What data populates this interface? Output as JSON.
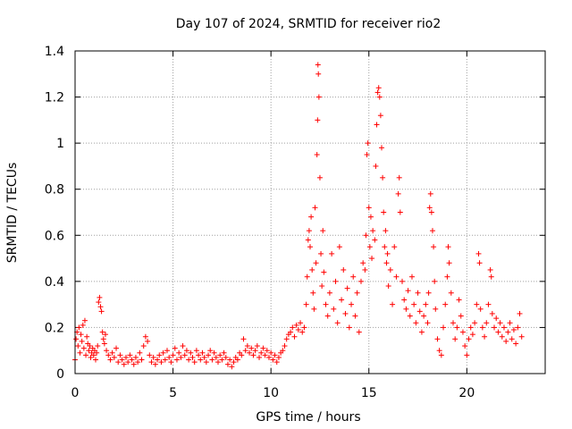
{
  "chart_data": {
    "type": "scatter",
    "title": "Day 107 of 2024, SRMTID for receiver rio2",
    "xlabel": "GPS time / hours",
    "ylabel": "SRMTID / TECUs",
    "xlim": [
      0,
      24
    ],
    "ylim": [
      0,
      1.4
    ],
    "xticks": [
      0,
      5,
      10,
      15,
      20
    ],
    "xtick_labels": [
      "0",
      "5",
      "10",
      "15",
      "20"
    ],
    "yticks": [
      0,
      0.2,
      0.4,
      0.6,
      0.8,
      1.0,
      1.2,
      1.4
    ],
    "ytick_labels": [
      "0",
      "0.2",
      "0.4",
      "0.6",
      "0.8",
      "1",
      "1.2",
      "1.4"
    ],
    "grid": true,
    "marker": "+",
    "color": "#ff0000",
    "series": [
      {
        "name": "SRMTID",
        "points": [
          [
            0.0,
            0.06
          ],
          [
            0.05,
            0.15
          ],
          [
            0.1,
            0.18
          ],
          [
            0.15,
            0.12
          ],
          [
            0.2,
            0.2
          ],
          [
            0.25,
            0.09
          ],
          [
            0.3,
            0.17
          ],
          [
            0.35,
            0.14
          ],
          [
            0.4,
            0.21
          ],
          [
            0.45,
            0.11
          ],
          [
            0.5,
            0.23
          ],
          [
            0.55,
            0.08
          ],
          [
            0.6,
            0.16
          ],
          [
            0.65,
            0.13
          ],
          [
            0.7,
            0.1
          ],
          [
            0.75,
            0.12
          ],
          [
            0.8,
            0.07
          ],
          [
            0.85,
            0.09
          ],
          [
            0.9,
            0.11
          ],
          [
            0.95,
            0.08
          ],
          [
            1.0,
            0.1
          ],
          [
            1.05,
            0.06
          ],
          [
            1.1,
            0.09
          ],
          [
            1.15,
            0.12
          ],
          [
            1.2,
            0.31
          ],
          [
            1.25,
            0.33
          ],
          [
            1.3,
            0.29
          ],
          [
            1.35,
            0.27
          ],
          [
            1.4,
            0.18
          ],
          [
            1.45,
            0.15
          ],
          [
            1.5,
            0.13
          ],
          [
            1.55,
            0.17
          ],
          [
            1.6,
            0.1
          ],
          [
            1.7,
            0.08
          ],
          [
            1.8,
            0.06
          ],
          [
            1.9,
            0.09
          ],
          [
            2.0,
            0.07
          ],
          [
            2.1,
            0.11
          ],
          [
            2.2,
            0.05
          ],
          [
            2.3,
            0.08
          ],
          [
            2.4,
            0.06
          ],
          [
            2.5,
            0.04
          ],
          [
            2.6,
            0.07
          ],
          [
            2.7,
            0.05
          ],
          [
            2.8,
            0.08
          ],
          [
            2.9,
            0.06
          ],
          [
            3.0,
            0.04
          ],
          [
            3.1,
            0.07
          ],
          [
            3.2,
            0.05
          ],
          [
            3.3,
            0.09
          ],
          [
            3.4,
            0.06
          ],
          [
            3.5,
            0.12
          ],
          [
            3.6,
            0.16
          ],
          [
            3.7,
            0.14
          ],
          [
            3.8,
            0.08
          ],
          [
            3.9,
            0.05
          ],
          [
            4.0,
            0.07
          ],
          [
            4.1,
            0.04
          ],
          [
            4.2,
            0.06
          ],
          [
            4.3,
            0.08
          ],
          [
            4.4,
            0.05
          ],
          [
            4.5,
            0.09
          ],
          [
            4.6,
            0.06
          ],
          [
            4.7,
            0.1
          ],
          [
            4.8,
            0.07
          ],
          [
            4.9,
            0.05
          ],
          [
            5.0,
            0.08
          ],
          [
            5.1,
            0.11
          ],
          [
            5.2,
            0.06
          ],
          [
            5.3,
            0.09
          ],
          [
            5.4,
            0.07
          ],
          [
            5.5,
            0.12
          ],
          [
            5.6,
            0.08
          ],
          [
            5.7,
            0.1
          ],
          [
            5.8,
            0.06
          ],
          [
            5.9,
            0.09
          ],
          [
            6.0,
            0.07
          ],
          [
            6.1,
            0.05
          ],
          [
            6.2,
            0.1
          ],
          [
            6.3,
            0.08
          ],
          [
            6.4,
            0.06
          ],
          [
            6.5,
            0.09
          ],
          [
            6.6,
            0.07
          ],
          [
            6.7,
            0.05
          ],
          [
            6.8,
            0.08
          ],
          [
            6.9,
            0.1
          ],
          [
            7.0,
            0.06
          ],
          [
            7.1,
            0.09
          ],
          [
            7.2,
            0.07
          ],
          [
            7.3,
            0.05
          ],
          [
            7.4,
            0.08
          ],
          [
            7.5,
            0.06
          ],
          [
            7.6,
            0.09
          ],
          [
            7.7,
            0.07
          ],
          [
            7.8,
            0.04
          ],
          [
            7.9,
            0.06
          ],
          [
            8.0,
            0.03
          ],
          [
            8.1,
            0.05
          ],
          [
            8.2,
            0.07
          ],
          [
            8.3,
            0.06
          ],
          [
            8.4,
            0.09
          ],
          [
            8.5,
            0.08
          ],
          [
            8.6,
            0.15
          ],
          [
            8.7,
            0.1
          ],
          [
            8.8,
            0.12
          ],
          [
            8.9,
            0.09
          ],
          [
            9.0,
            0.11
          ],
          [
            9.1,
            0.08
          ],
          [
            9.2,
            0.1
          ],
          [
            9.3,
            0.12
          ],
          [
            9.4,
            0.07
          ],
          [
            9.5,
            0.09
          ],
          [
            9.6,
            0.11
          ],
          [
            9.7,
            0.08
          ],
          [
            9.8,
            0.1
          ],
          [
            9.9,
            0.07
          ],
          [
            10.0,
            0.09
          ],
          [
            10.1,
            0.06
          ],
          [
            10.2,
            0.08
          ],
          [
            10.3,
            0.05
          ],
          [
            10.4,
            0.07
          ],
          [
            10.5,
            0.09
          ],
          [
            10.6,
            0.1
          ],
          [
            10.7,
            0.12
          ],
          [
            10.8,
            0.15
          ],
          [
            10.9,
            0.17
          ],
          [
            11.0,
            0.18
          ],
          [
            11.1,
            0.2
          ],
          [
            11.2,
            0.16
          ],
          [
            11.3,
            0.21
          ],
          [
            11.4,
            0.19
          ],
          [
            11.5,
            0.22
          ],
          [
            11.6,
            0.18
          ],
          [
            11.7,
            0.2
          ],
          [
            11.8,
            0.3
          ],
          [
            11.85,
            0.42
          ],
          [
            11.9,
            0.58
          ],
          [
            11.95,
            0.62
          ],
          [
            12.0,
            0.55
          ],
          [
            12.05,
            0.68
          ],
          [
            12.1,
            0.45
          ],
          [
            12.15,
            0.35
          ],
          [
            12.2,
            0.28
          ],
          [
            12.25,
            0.72
          ],
          [
            12.3,
            0.48
          ],
          [
            12.35,
            0.95
          ],
          [
            12.38,
            1.1
          ],
          [
            12.4,
            1.34
          ],
          [
            12.42,
            1.3
          ],
          [
            12.45,
            1.2
          ],
          [
            12.5,
            0.85
          ],
          [
            12.55,
            0.52
          ],
          [
            12.6,
            0.38
          ],
          [
            12.65,
            0.62
          ],
          [
            12.7,
            0.44
          ],
          [
            12.8,
            0.3
          ],
          [
            12.9,
            0.25
          ],
          [
            13.0,
            0.35
          ],
          [
            13.1,
            0.52
          ],
          [
            13.2,
            0.28
          ],
          [
            13.3,
            0.4
          ],
          [
            13.4,
            0.22
          ],
          [
            13.5,
            0.55
          ],
          [
            13.6,
            0.32
          ],
          [
            13.7,
            0.45
          ],
          [
            13.8,
            0.26
          ],
          [
            13.9,
            0.37
          ],
          [
            14.0,
            0.2
          ],
          [
            14.1,
            0.3
          ],
          [
            14.2,
            0.42
          ],
          [
            14.3,
            0.25
          ],
          [
            14.4,
            0.35
          ],
          [
            14.5,
            0.18
          ],
          [
            14.6,
            0.4
          ],
          [
            14.7,
            0.48
          ],
          [
            14.8,
            0.45
          ],
          [
            14.85,
            0.6
          ],
          [
            14.9,
            0.95
          ],
          [
            14.95,
            1.0
          ],
          [
            15.0,
            0.72
          ],
          [
            15.05,
            0.55
          ],
          [
            15.1,
            0.68
          ],
          [
            15.15,
            0.5
          ],
          [
            15.2,
            0.62
          ],
          [
            15.3,
            0.58
          ],
          [
            15.35,
            0.9
          ],
          [
            15.4,
            1.08
          ],
          [
            15.45,
            1.22
          ],
          [
            15.5,
            1.24
          ],
          [
            15.55,
            1.2
          ],
          [
            15.6,
            1.12
          ],
          [
            15.65,
            0.98
          ],
          [
            15.7,
            0.85
          ],
          [
            15.75,
            0.7
          ],
          [
            15.8,
            0.55
          ],
          [
            15.85,
            0.62
          ],
          [
            15.9,
            0.48
          ],
          [
            15.95,
            0.52
          ],
          [
            16.0,
            0.38
          ],
          [
            16.1,
            0.45
          ],
          [
            16.2,
            0.3
          ],
          [
            16.3,
            0.55
          ],
          [
            16.4,
            0.42
          ],
          [
            16.5,
            0.78
          ],
          [
            16.55,
            0.85
          ],
          [
            16.6,
            0.7
          ],
          [
            16.7,
            0.4
          ],
          [
            16.8,
            0.32
          ],
          [
            16.9,
            0.28
          ],
          [
            17.0,
            0.36
          ],
          [
            17.1,
            0.25
          ],
          [
            17.2,
            0.42
          ],
          [
            17.3,
            0.3
          ],
          [
            17.4,
            0.22
          ],
          [
            17.5,
            0.35
          ],
          [
            17.6,
            0.27
          ],
          [
            17.7,
            0.18
          ],
          [
            17.8,
            0.25
          ],
          [
            17.9,
            0.3
          ],
          [
            18.0,
            0.22
          ],
          [
            18.05,
            0.35
          ],
          [
            18.1,
            0.72
          ],
          [
            18.15,
            0.78
          ],
          [
            18.2,
            0.7
          ],
          [
            18.25,
            0.62
          ],
          [
            18.3,
            0.55
          ],
          [
            18.35,
            0.4
          ],
          [
            18.4,
            0.28
          ],
          [
            18.5,
            0.15
          ],
          [
            18.6,
            0.1
          ],
          [
            18.7,
            0.08
          ],
          [
            18.8,
            0.2
          ],
          [
            18.9,
            0.3
          ],
          [
            19.0,
            0.42
          ],
          [
            19.05,
            0.55
          ],
          [
            19.1,
            0.48
          ],
          [
            19.2,
            0.35
          ],
          [
            19.3,
            0.22
          ],
          [
            19.4,
            0.15
          ],
          [
            19.5,
            0.2
          ],
          [
            19.6,
            0.32
          ],
          [
            19.7,
            0.25
          ],
          [
            19.8,
            0.18
          ],
          [
            19.9,
            0.12
          ],
          [
            20.0,
            0.08
          ],
          [
            20.1,
            0.15
          ],
          [
            20.2,
            0.2
          ],
          [
            20.3,
            0.17
          ],
          [
            20.4,
            0.22
          ],
          [
            20.5,
            0.3
          ],
          [
            20.6,
            0.52
          ],
          [
            20.65,
            0.48
          ],
          [
            20.7,
            0.28
          ],
          [
            20.8,
            0.2
          ],
          [
            20.9,
            0.16
          ],
          [
            21.0,
            0.22
          ],
          [
            21.1,
            0.3
          ],
          [
            21.2,
            0.45
          ],
          [
            21.25,
            0.42
          ],
          [
            21.3,
            0.26
          ],
          [
            21.4,
            0.2
          ],
          [
            21.5,
            0.24
          ],
          [
            21.6,
            0.18
          ],
          [
            21.7,
            0.22
          ],
          [
            21.8,
            0.16
          ],
          [
            21.9,
            0.2
          ],
          [
            22.0,
            0.14
          ],
          [
            22.1,
            0.18
          ],
          [
            22.2,
            0.22
          ],
          [
            22.3,
            0.15
          ],
          [
            22.4,
            0.19
          ],
          [
            22.5,
            0.13
          ],
          [
            22.6,
            0.2
          ],
          [
            22.7,
            0.26
          ],
          [
            22.8,
            0.16
          ]
        ]
      }
    ]
  }
}
